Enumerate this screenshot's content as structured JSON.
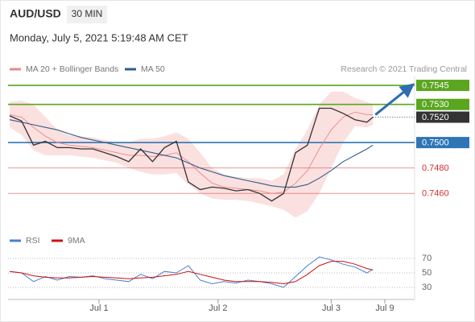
{
  "chart_data": [
    {
      "type": "line",
      "title": "AUD/USD",
      "subtitle": "30 MIN",
      "date": "Monday, July 5, 2021 5:19:48 AM CET",
      "credit": "Research © 2021 Trading Central",
      "x": [
        0,
        2,
        4,
        6,
        8,
        10,
        12,
        14,
        16,
        18,
        20,
        22,
        24,
        26,
        28,
        30,
        32,
        34,
        36,
        38,
        40,
        42,
        44,
        46,
        48,
        50,
        52,
        54,
        56,
        58,
        60,
        61
      ],
      "xlim": [
        0,
        68
      ],
      "xticks": [
        {
          "value": 15,
          "label": "Jul 1"
        },
        {
          "value": 35,
          "label": "Jul 2"
        },
        {
          "value": 54,
          "label": "Jul 3"
        },
        {
          "value": 63,
          "label": "Jul 9"
        }
      ],
      "ylim": [
        0.7438,
        0.7552
      ],
      "price": {
        "color": "#333333",
        "values": [
          0.7521,
          0.7517,
          0.7498,
          0.7501,
          0.7496,
          0.7496,
          0.7495,
          0.7495,
          0.7492,
          0.7489,
          0.7485,
          0.7495,
          0.7485,
          0.7496,
          0.7501,
          0.7469,
          0.7463,
          0.7465,
          0.7464,
          0.7462,
          0.7463,
          0.746,
          0.7454,
          0.746,
          0.7492,
          0.7498,
          0.7527,
          0.7527,
          0.7523,
          0.7518,
          0.7516,
          0.752
        ]
      },
      "band": {
        "color": "#fadada",
        "upper": [
          0.7532,
          0.7533,
          0.753,
          0.752,
          0.751,
          0.7506,
          0.7505,
          0.7504,
          0.7502,
          0.75,
          0.75,
          0.7503,
          0.7503,
          0.7505,
          0.7508,
          0.7503,
          0.7492,
          0.748,
          0.7475,
          0.7473,
          0.7472,
          0.7472,
          0.747,
          0.7475,
          0.7495,
          0.751,
          0.753,
          0.754,
          0.754,
          0.7535,
          0.7532,
          0.753
        ],
        "lower": [
          0.7512,
          0.7506,
          0.7494,
          0.749,
          0.749,
          0.749,
          0.7489,
          0.7488,
          0.7486,
          0.7484,
          0.748,
          0.7477,
          0.7475,
          0.7475,
          0.7476,
          0.7467,
          0.746,
          0.7456,
          0.7455,
          0.7455,
          0.7454,
          0.7452,
          0.745,
          0.7447,
          0.7441,
          0.7446,
          0.746,
          0.748,
          0.75,
          0.7513,
          0.7512,
          0.7514
        ]
      },
      "series": [
        {
          "name": "MA 20 + Bollinger Bands",
          "color": "#e88a8a",
          "values": [
            0.7522,
            0.752,
            0.7512,
            0.7505,
            0.75,
            0.7498,
            0.7497,
            0.7496,
            0.7494,
            0.7492,
            0.749,
            0.749,
            0.7489,
            0.749,
            0.7492,
            0.7485,
            0.7476,
            0.7468,
            0.7465,
            0.7464,
            0.7463,
            0.7462,
            0.746,
            0.7461,
            0.7468,
            0.7478,
            0.7495,
            0.751,
            0.752,
            0.7524,
            0.7522,
            0.7522
          ]
        },
        {
          "name": "MA 50",
          "color": "#2e5f8a",
          "values": [
            0.7518,
            0.7516,
            0.7514,
            0.7512,
            0.751,
            0.7507,
            0.7504,
            0.7502,
            0.75,
            0.7498,
            0.7496,
            0.7494,
            0.7492,
            0.749,
            0.7488,
            0.7484,
            0.748,
            0.7477,
            0.7474,
            0.7472,
            0.747,
            0.7468,
            0.7466,
            0.7465,
            0.7465,
            0.7467,
            0.7472,
            0.7478,
            0.7485,
            0.749,
            0.7495,
            0.7498
          ]
        }
      ],
      "levels": [
        {
          "value": 0.7545,
          "label": "0.7545",
          "color": "#5aa61e",
          "boxed": true,
          "line": "solid"
        },
        {
          "value": 0.753,
          "label": "0.7530",
          "color": "#5aa61e",
          "boxed": true,
          "line": "solid"
        },
        {
          "value": 0.752,
          "label": "0.7520",
          "color": "#333333",
          "boxed": true,
          "line": "dotted"
        },
        {
          "value": 0.75,
          "label": "0.7500",
          "color": "#2e75b6",
          "boxed": true,
          "line": "solid"
        },
        {
          "value": 0.748,
          "label": "0.7480",
          "color": "#d03030",
          "boxed": false,
          "line": "solid"
        },
        {
          "value": 0.746,
          "label": "0.7460",
          "color": "#d03030",
          "boxed": false,
          "line": "solid"
        }
      ]
    },
    {
      "type": "line",
      "x": [
        0,
        2,
        4,
        6,
        8,
        10,
        12,
        14,
        16,
        18,
        20,
        22,
        24,
        26,
        28,
        30,
        32,
        34,
        36,
        38,
        40,
        42,
        44,
        46,
        48,
        50,
        52,
        54,
        56,
        58,
        60,
        61
      ],
      "xlim": [
        0,
        68
      ],
      "ylim": [
        20,
        80
      ],
      "yticks": [
        30,
        50,
        70
      ],
      "series": [
        {
          "name": "RSI",
          "color": "#4a7fd0",
          "values": [
            52,
            50,
            38,
            45,
            40,
            45,
            44,
            46,
            42,
            40,
            38,
            48,
            42,
            52,
            50,
            60,
            40,
            35,
            38,
            36,
            40,
            38,
            35,
            30,
            45,
            60,
            72,
            68,
            62,
            58,
            50,
            55
          ]
        },
        {
          "name": "9MA",
          "color": "#d01010",
          "values": [
            52,
            50,
            46,
            44,
            43,
            43,
            44,
            45,
            44,
            43,
            42,
            43,
            44,
            46,
            48,
            52,
            48,
            44,
            40,
            38,
            38,
            38,
            37,
            35,
            38,
            48,
            60,
            66,
            66,
            62,
            56,
            54
          ]
        }
      ]
    }
  ]
}
